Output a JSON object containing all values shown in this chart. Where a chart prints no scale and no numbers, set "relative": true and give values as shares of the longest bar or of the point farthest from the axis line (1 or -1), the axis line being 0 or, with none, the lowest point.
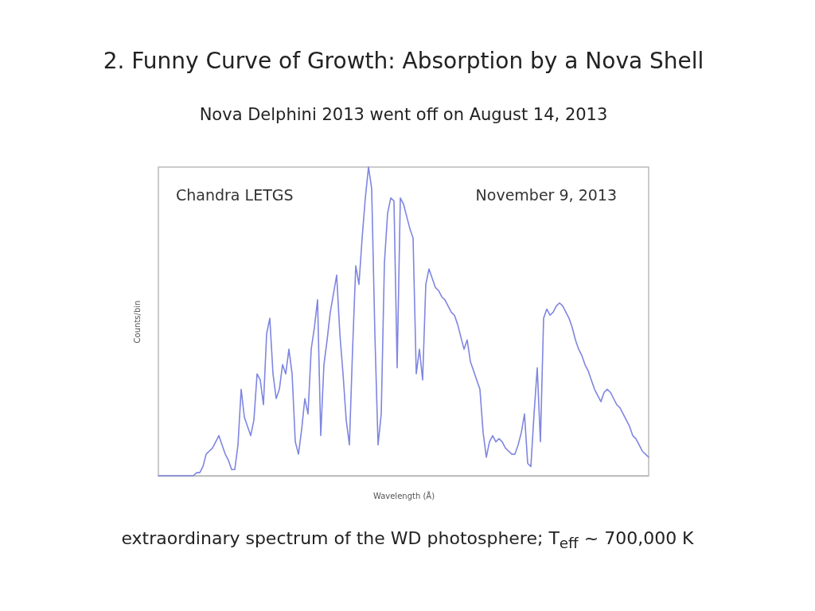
{
  "chart_data": {
    "type": "line",
    "title": "2. Funny Curve of Growth: Absorption by a Nova Shell",
    "subtitle": "Nova Delphini 2013 went off on August 14, 2013",
    "xlabel": "Wavelength (Å)",
    "ylabel": "Counts/bin",
    "relative": true,
    "color": "#7f86e0",
    "annotations": [
      "Chandra LETGS",
      "November 9, 2013",
      "extraordinary spectrum of the WD photosphere; T$_{eff}$ ~ 700,000 K"
    ],
    "categories": [
      null,
      null,
      null,
      null,
      null,
      null,
      null,
      null,
      null,
      null,
      null,
      null,
      null,
      null,
      null,
      null,
      null,
      null,
      null,
      null,
      null,
      null,
      null,
      null,
      null,
      null,
      null,
      null,
      null,
      null,
      null,
      null,
      null,
      null,
      null,
      null,
      null,
      null,
      null,
      null,
      null,
      null,
      null,
      null,
      null,
      null,
      null,
      null,
      null,
      null,
      null,
      null,
      null,
      null,
      null,
      null,
      null,
      null,
      null,
      null,
      null,
      null,
      null,
      null,
      null,
      null,
      null,
      null,
      null,
      null,
      null,
      null,
      null,
      null,
      null,
      null,
      null,
      null,
      null,
      null,
      null,
      null,
      null,
      null,
      null,
      null,
      null,
      null,
      null,
      null,
      null,
      null,
      null,
      null,
      null,
      null,
      null,
      null,
      null,
      null,
      null,
      null,
      null,
      null,
      null,
      null,
      null,
      null,
      null,
      null,
      null,
      null,
      null,
      null,
      null,
      null,
      null,
      null,
      null,
      null,
      null,
      null,
      null,
      null,
      null,
      null,
      null,
      null,
      null,
      null,
      null,
      null,
      null,
      null,
      null,
      null,
      null,
      null,
      null,
      null,
      null,
      null,
      null,
      null,
      null,
      null,
      null,
      null,
      null,
      null,
      null,
      null,
      null,
      null,
      null
    ],
    "values": [
      0,
      0,
      0,
      0,
      0,
      0,
      0,
      0,
      0,
      0,
      0,
      0,
      0.01,
      0.01,
      0.03,
      0.07,
      0.08,
      0.09,
      0.11,
      0.13,
      0.1,
      0.07,
      0.05,
      0.02,
      0.02,
      0.1,
      0.28,
      0.19,
      0.16,
      0.13,
      0.18,
      0.33,
      0.31,
      0.23,
      0.46,
      0.51,
      0.33,
      0.25,
      0.28,
      0.36,
      0.33,
      0.41,
      0.33,
      0.11,
      0.07,
      0.15,
      0.25,
      0.2,
      0.41,
      0.48,
      0.57,
      0.13,
      0.36,
      0.44,
      0.53,
      0.59,
      0.65,
      0.46,
      0.33,
      0.18,
      0.1,
      0.41,
      0.68,
      0.62,
      0.77,
      0.9,
      1,
      0.93,
      0.46,
      0.1,
      0.2,
      0.69,
      0.85,
      0.9,
      0.89,
      0.35,
      0.9,
      0.88,
      0.84,
      0.8,
      0.77,
      0.33,
      0.41,
      0.31,
      0.62,
      0.67,
      0.64,
      0.61,
      0.6,
      0.58,
      0.57,
      0.55,
      0.53,
      0.52,
      0.49,
      0.45,
      0.41,
      0.44,
      0.37,
      0.34,
      0.31,
      0.28,
      0.14,
      0.06,
      0.11,
      0.13,
      0.11,
      0.12,
      0.11,
      0.09,
      0.08,
      0.07,
      0.07,
      0.1,
      0.14,
      0.2,
      0.04,
      0.03,
      0.2,
      0.35,
      0.11,
      0.51,
      0.54,
      0.52,
      0.53,
      0.55,
      0.56,
      0.55,
      0.53,
      0.51,
      0.48,
      0.44,
      0.41,
      0.39,
      0.36,
      0.34,
      0.31,
      0.28,
      0.26,
      0.24,
      0.27,
      0.28,
      0.27,
      0.25,
      0.23,
      0.22,
      0.2,
      0.18,
      0.16,
      0.13,
      0.12,
      0.1,
      0.08,
      0.07,
      0.06
    ]
  }
}
